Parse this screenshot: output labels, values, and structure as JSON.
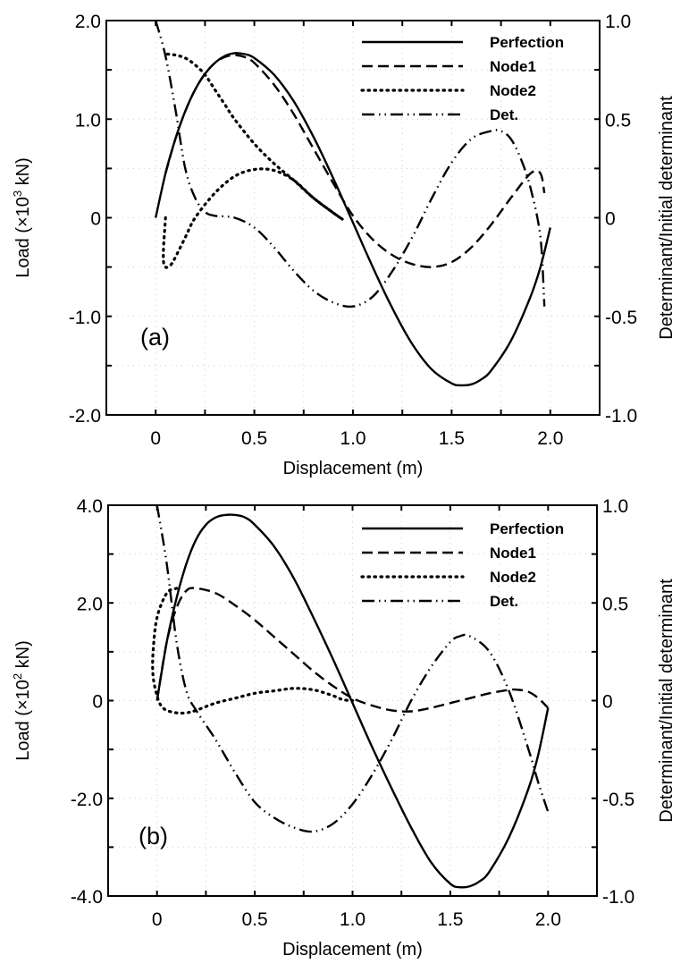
{
  "chart_data": [
    {
      "type": "line",
      "panel_label": "(a)",
      "xlabel": "Displacement (m)",
      "ylabel": "Load (×10³ kN)",
      "ylabel_parts": {
        "prefix": "Load (×10",
        "sup": "3",
        "suffix": " kN)"
      },
      "y2label": "Determinant/Initial determinant",
      "xlim": [
        -0.25,
        2.25
      ],
      "ylim": [
        -2.0,
        2.0
      ],
      "y2lim": [
        -1.0,
        1.0
      ],
      "xticks": [
        0,
        0.5,
        1.0,
        1.5,
        2.0
      ],
      "xtick_labels": [
        "0",
        "0.5",
        "1.0",
        "1.5",
        "2.0"
      ],
      "yticks": [
        -2.0,
        -1.0,
        0,
        1.0,
        2.0
      ],
      "ytick_labels": [
        "-2.0",
        "-1.0",
        "0",
        "1.0",
        "2.0"
      ],
      "y2ticks": [
        -1.0,
        -0.5,
        0,
        0.5,
        1.0
      ],
      "y2tick_labels": [
        "-1.0",
        "-0.5",
        "0",
        "0.5",
        "1.0"
      ],
      "grid": true,
      "legend_position": "top-right",
      "series": [
        {
          "name": "Perfection",
          "style": "solid",
          "axis": "left",
          "x": [
            0,
            0.05,
            0.1,
            0.15,
            0.2,
            0.25,
            0.3,
            0.35,
            0.4,
            0.45,
            0.5,
            0.6,
            0.7,
            0.8,
            0.9,
            1.0,
            1.1,
            1.2,
            1.3,
            1.4,
            1.5,
            1.55,
            1.6,
            1.65,
            1.7,
            1.8,
            1.9,
            1.95,
            2.0
          ],
          "y": [
            0,
            0.45,
            0.8,
            1.08,
            1.3,
            1.46,
            1.57,
            1.64,
            1.67,
            1.66,
            1.62,
            1.45,
            1.18,
            0.82,
            0.4,
            -0.05,
            -0.5,
            -0.92,
            -1.28,
            -1.54,
            -1.68,
            -1.7,
            -1.69,
            -1.64,
            -1.55,
            -1.25,
            -0.8,
            -0.5,
            -0.1
          ]
        },
        {
          "name": "Node1",
          "style": "dashed",
          "axis": "left",
          "x": [
            0.05,
            0.1,
            0.15,
            0.2,
            0.25,
            0.3,
            0.35,
            0.4,
            0.45,
            0.5,
            0.6,
            0.7,
            0.8,
            0.9,
            1.0,
            1.1,
            1.2,
            1.3,
            1.4,
            1.5,
            1.6,
            1.7,
            1.8,
            1.9,
            1.95,
            1.97
          ],
          "y": [
            0.45,
            0.8,
            1.08,
            1.3,
            1.46,
            1.57,
            1.63,
            1.65,
            1.63,
            1.57,
            1.35,
            1.05,
            0.7,
            0.35,
            0.02,
            -0.22,
            -0.38,
            -0.47,
            -0.5,
            -0.45,
            -0.3,
            -0.07,
            0.2,
            0.45,
            0.45,
            0.25
          ]
        },
        {
          "name": "Node2",
          "style": "dotted",
          "axis": "left",
          "x": [
            0.05,
            0.04,
            0.04,
            0.05,
            0.06,
            0.08,
            0.1,
            0.15,
            0.2,
            0.3,
            0.4,
            0.5,
            0.6,
            0.7,
            0.8,
            0.9,
            0.95,
            0.9,
            0.8,
            0.7,
            0.6,
            0.5,
            0.4,
            0.35,
            0.3,
            0.25,
            0.2,
            0.15,
            0.1,
            0.06
          ],
          "y": [
            0,
            -0.3,
            -0.45,
            -0.5,
            -0.5,
            -0.47,
            -0.4,
            -0.2,
            0,
            0.25,
            0.42,
            0.49,
            0.48,
            0.38,
            0.2,
            0.05,
            -0.02,
            0.05,
            0.2,
            0.38,
            0.55,
            0.75,
            1.0,
            1.15,
            1.3,
            1.45,
            1.55,
            1.62,
            1.65,
            1.66
          ]
        },
        {
          "name": "Det.",
          "style": "dash-dot-dot",
          "axis": "right",
          "x": [
            0,
            0.05,
            0.1,
            0.15,
            0.2,
            0.25,
            0.3,
            0.4,
            0.5,
            0.6,
            0.7,
            0.8,
            0.9,
            1.0,
            1.1,
            1.2,
            1.3,
            1.4,
            1.5,
            1.6,
            1.7,
            1.75,
            1.8,
            1.85,
            1.9,
            1.95,
            1.97
          ],
          "y": [
            1.0,
            0.82,
            0.55,
            0.25,
            0.1,
            0.03,
            0.01,
            0.0,
            -0.05,
            -0.15,
            -0.27,
            -0.37,
            -0.43,
            -0.45,
            -0.4,
            -0.27,
            -0.1,
            0.1,
            0.28,
            0.4,
            0.44,
            0.44,
            0.4,
            0.3,
            0.15,
            -0.1,
            -0.45
          ]
        }
      ]
    },
    {
      "type": "line",
      "panel_label": "(b)",
      "xlabel": "Displacement (m)",
      "ylabel": "Load (×10² kN)",
      "ylabel_parts": {
        "prefix": "Load (×10",
        "sup": "2",
        "suffix": " kN)"
      },
      "y2label": "Determinant/Initial determinant",
      "xlim": [
        -0.25,
        2.25
      ],
      "ylim": [
        -4.0,
        4.0
      ],
      "y2lim": [
        -1.0,
        1.0
      ],
      "xticks": [
        0,
        0.5,
        1.0,
        1.5,
        2.0
      ],
      "xtick_labels": [
        "0",
        "0.5",
        "1.0",
        "1.5",
        "2.0"
      ],
      "yticks": [
        -4.0,
        -2.0,
        0,
        2.0,
        4.0
      ],
      "ytick_labels": [
        "-4.0",
        "-2.0",
        "0",
        "2.0",
        "4.0"
      ],
      "y2ticks": [
        -1.0,
        -0.5,
        0,
        0.5,
        1.0
      ],
      "y2tick_labels": [
        "-1.0",
        "-0.5",
        "0",
        "0.5",
        "1.0"
      ],
      "grid": true,
      "legend_position": "top-right",
      "series": [
        {
          "name": "Perfection",
          "style": "solid",
          "axis": "left",
          "x": [
            0,
            0.05,
            0.1,
            0.15,
            0.2,
            0.25,
            0.3,
            0.35,
            0.4,
            0.45,
            0.5,
            0.6,
            0.7,
            0.8,
            0.9,
            1.0,
            1.1,
            1.2,
            1.3,
            1.4,
            1.5,
            1.55,
            1.6,
            1.65,
            1.7,
            1.8,
            1.9,
            1.95,
            2.0
          ],
          "y": [
            0,
            1.2,
            2.1,
            2.8,
            3.3,
            3.6,
            3.75,
            3.8,
            3.8,
            3.75,
            3.6,
            3.15,
            2.5,
            1.7,
            0.85,
            -0.05,
            -0.95,
            -1.8,
            -2.6,
            -3.3,
            -3.75,
            -3.82,
            -3.8,
            -3.7,
            -3.5,
            -2.8,
            -1.8,
            -1.1,
            -0.15
          ]
        },
        {
          "name": "Node1",
          "style": "dashed",
          "axis": "left",
          "x": [
            0,
            0.05,
            0.1,
            0.15,
            0.2,
            0.3,
            0.4,
            0.5,
            0.6,
            0.7,
            0.8,
            0.9,
            1.0,
            1.1,
            1.2,
            1.3,
            1.4,
            1.5,
            1.6,
            1.7,
            1.8,
            1.85,
            1.9,
            1.95,
            2.0
          ],
          "y": [
            0,
            1.2,
            1.9,
            2.25,
            2.3,
            2.2,
            1.95,
            1.65,
            1.3,
            0.95,
            0.6,
            0.3,
            0.05,
            -0.1,
            -0.2,
            -0.22,
            -0.15,
            -0.05,
            0.05,
            0.15,
            0.22,
            0.22,
            0.18,
            0.05,
            -0.15
          ]
        },
        {
          "name": "Node2",
          "style": "dotted",
          "axis": "left",
          "x": [
            0.1,
            0.05,
            0.0,
            -0.02,
            -0.02,
            0.0,
            0.02,
            0.05,
            0.1,
            0.15,
            0.2,
            0.3,
            0.4,
            0.5,
            0.6,
            0.7,
            0.8,
            0.9,
            0.95,
            1.0
          ],
          "y": [
            2.3,
            2.2,
            1.7,
            1.0,
            0.5,
            0.1,
            -0.1,
            -0.2,
            -0.25,
            -0.25,
            -0.2,
            -0.05,
            0.05,
            0.15,
            0.2,
            0.25,
            0.22,
            0.1,
            0.02,
            0.0
          ]
        },
        {
          "name": "Det.",
          "style": "dash-dot-dot",
          "axis": "right",
          "x": [
            0,
            0.05,
            0.1,
            0.15,
            0.2,
            0.3,
            0.4,
            0.5,
            0.6,
            0.7,
            0.8,
            0.9,
            1.0,
            1.1,
            1.2,
            1.3,
            1.4,
            1.5,
            1.55,
            1.6,
            1.7,
            1.8,
            1.9,
            1.95,
            2.0
          ],
          "y": [
            1.0,
            0.7,
            0.3,
            0.05,
            -0.05,
            -0.2,
            -0.37,
            -0.52,
            -0.6,
            -0.65,
            -0.67,
            -0.63,
            -0.53,
            -0.38,
            -0.2,
            0.0,
            0.17,
            0.3,
            0.33,
            0.33,
            0.25,
            0.05,
            -0.25,
            -0.42,
            -0.57
          ]
        }
      ]
    }
  ]
}
